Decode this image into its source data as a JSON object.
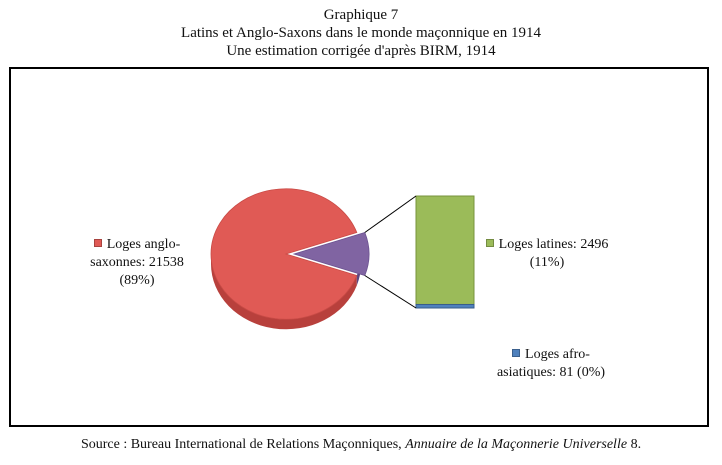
{
  "header": {
    "title": "Graphique 7",
    "subtitle": "Latins et Anglo-Saxons dans le monde maçonnique en 1914",
    "subtitle2": "Une estimation corrigée d'après BIRM, 1914"
  },
  "chart_data": {
    "type": "pie",
    "subtype": "pie-of-bar",
    "slices": [
      {
        "label_line1": "Loges anglo-",
        "label_line2": "saxonnes: 21538",
        "label_line3": "(89%)",
        "value": 21538,
        "percent": 89,
        "color": "#e05a55"
      },
      {
        "label_line1": "Loges latines: 2496",
        "label_line2": "(11%)",
        "value": 2496,
        "percent": 11,
        "color": "#9bbb59"
      },
      {
        "label_line1": "Loges afro-",
        "label_line2": "asiatiques: 81 (0%)",
        "value": 81,
        "percent": 0,
        "color": "#4f81bd"
      }
    ],
    "other_slice": {
      "color": "#8064a2"
    },
    "legend_position": "labels-beside-slices"
  },
  "source": {
    "prefix": "Source : Bureau International de Relations Maçonniques, ",
    "italic": "Annuaire de la Maçonnerie Universelle",
    "suffix": " 8."
  }
}
